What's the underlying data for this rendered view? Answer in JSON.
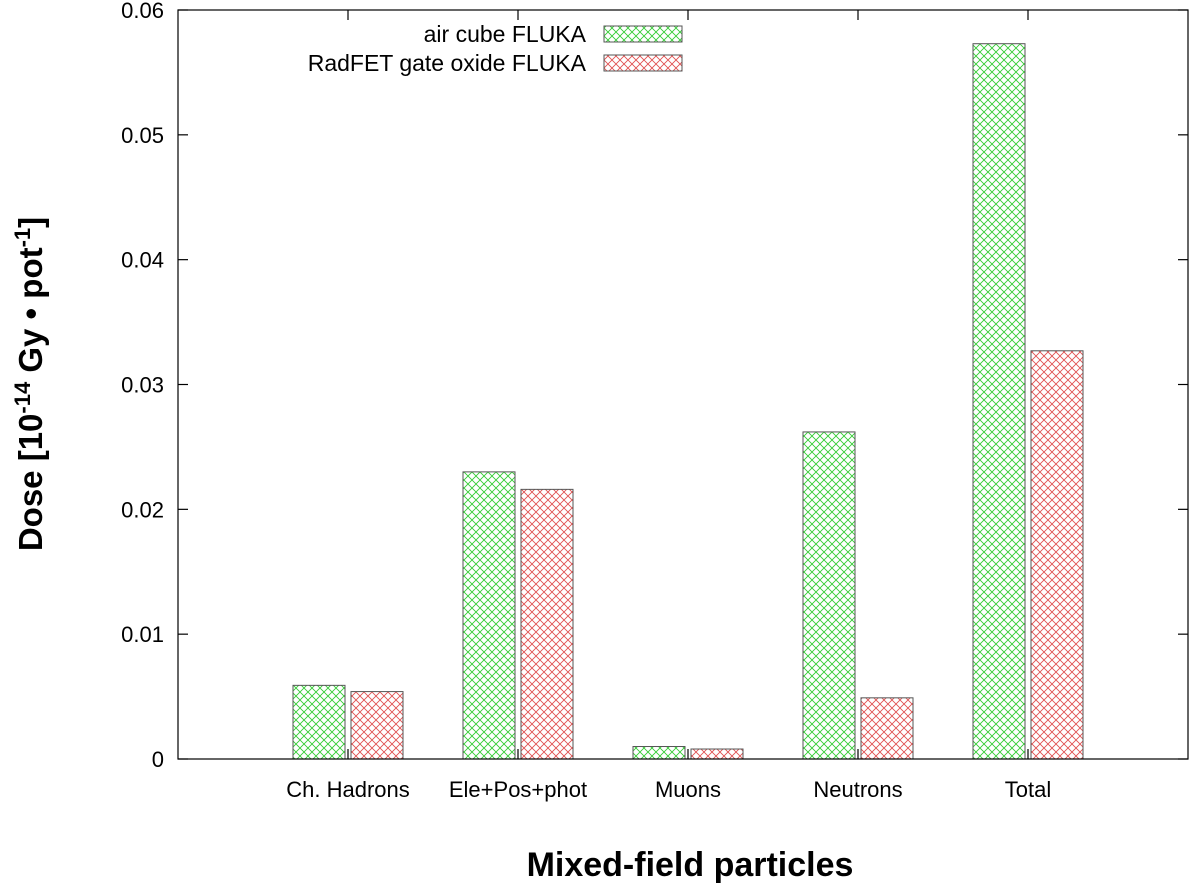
{
  "chart_data": {
    "type": "bar",
    "title": "",
    "xlabel": "Mixed-field particles",
    "ylabel": {
      "prefix": "Dose [10",
      "exp1": "-14",
      "middle": " Gy • pot",
      "exp2": "-1",
      "suffix": "]"
    },
    "categories": [
      "Ch. Hadrons",
      "Ele+Pos+phot",
      "Muons",
      "Neutrons",
      "Total"
    ],
    "series": [
      {
        "name": "air cube FLUKA",
        "color": "#33cc33",
        "values": [
          0.0059,
          0.023,
          0.001,
          0.0262,
          0.0573
        ]
      },
      {
        "name": "RadFET gate oxide FLUKA",
        "color": "#e05050",
        "values": [
          0.0054,
          0.0216,
          0.0008,
          0.0049,
          0.0327
        ]
      }
    ],
    "ylim": [
      0,
      0.06
    ],
    "yticks": [
      "0",
      "0.01",
      "0.02",
      "0.03",
      "0.04",
      "0.05",
      "0.06"
    ],
    "legend_position": "top-right",
    "grid": false
  }
}
